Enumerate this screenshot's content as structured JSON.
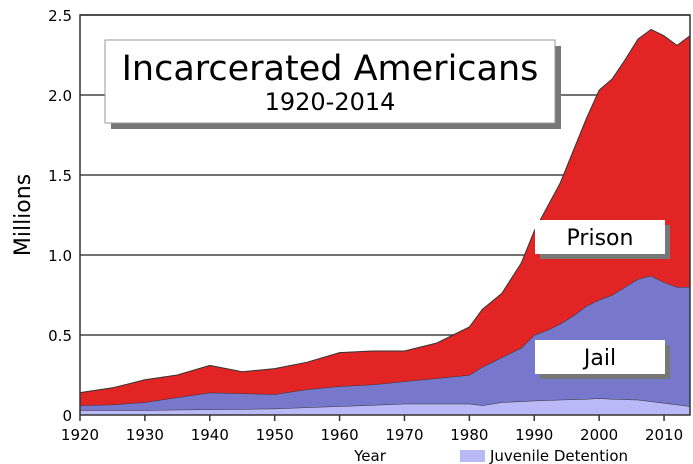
{
  "chart_data": {
    "type": "area",
    "stacked": true,
    "title": "Incarcerated Americans",
    "subtitle": "1920-2014",
    "xlabel": "Year",
    "ylabel": "Millions",
    "xlim": [
      1920,
      2014
    ],
    "ylim": [
      0,
      2.5
    ],
    "xticks": [
      "1920",
      "1930",
      "1940",
      "1950",
      "1960",
      "1970",
      "1980",
      "1990",
      "2000",
      "2010"
    ],
    "yticks": [
      "0",
      "0.5",
      "1.0",
      "1.5",
      "2.0",
      "2.5"
    ],
    "grid": true,
    "x": [
      1920,
      1925,
      1930,
      1935,
      1940,
      1945,
      1950,
      1955,
      1960,
      1965,
      1970,
      1975,
      1980,
      1982,
      1985,
      1988,
      1990,
      1992,
      1994,
      1996,
      1998,
      2000,
      2002,
      2004,
      2006,
      2008,
      2010,
      2012,
      2014
    ],
    "series": [
      {
        "name": "Juvenile Detention",
        "color": "#b9b9f7",
        "values": [
          0.03,
          0.03,
          0.03,
          0.033,
          0.035,
          0.037,
          0.04,
          0.048,
          0.055,
          0.062,
          0.07,
          0.07,
          0.07,
          0.06,
          0.08,
          0.085,
          0.09,
          0.092,
          0.095,
          0.098,
          0.1,
          0.105,
          0.1,
          0.098,
          0.095,
          0.085,
          0.075,
          0.065,
          0.055
        ]
      },
      {
        "name": "Jail",
        "color": "#7777cc",
        "values": [
          0.03,
          0.035,
          0.05,
          0.077,
          0.105,
          0.098,
          0.09,
          0.112,
          0.125,
          0.128,
          0.14,
          0.16,
          0.18,
          0.24,
          0.28,
          0.335,
          0.41,
          0.438,
          0.475,
          0.522,
          0.58,
          0.615,
          0.65,
          0.702,
          0.755,
          0.785,
          0.755,
          0.735,
          0.745
        ]
      },
      {
        "name": "Prison",
        "color": "#e32424",
        "values": [
          0.08,
          0.105,
          0.14,
          0.14,
          0.17,
          0.135,
          0.16,
          0.17,
          0.21,
          0.21,
          0.19,
          0.22,
          0.3,
          0.36,
          0.4,
          0.53,
          0.65,
          0.77,
          0.88,
          1.03,
          1.17,
          1.31,
          1.35,
          1.42,
          1.5,
          1.54,
          1.54,
          1.51,
          1.57
        ]
      }
    ],
    "labels": {
      "prison": "Prison",
      "jail": "Jail"
    },
    "legend": {
      "position": "bottom-right",
      "entries": [
        "Juvenile Detention"
      ]
    }
  }
}
